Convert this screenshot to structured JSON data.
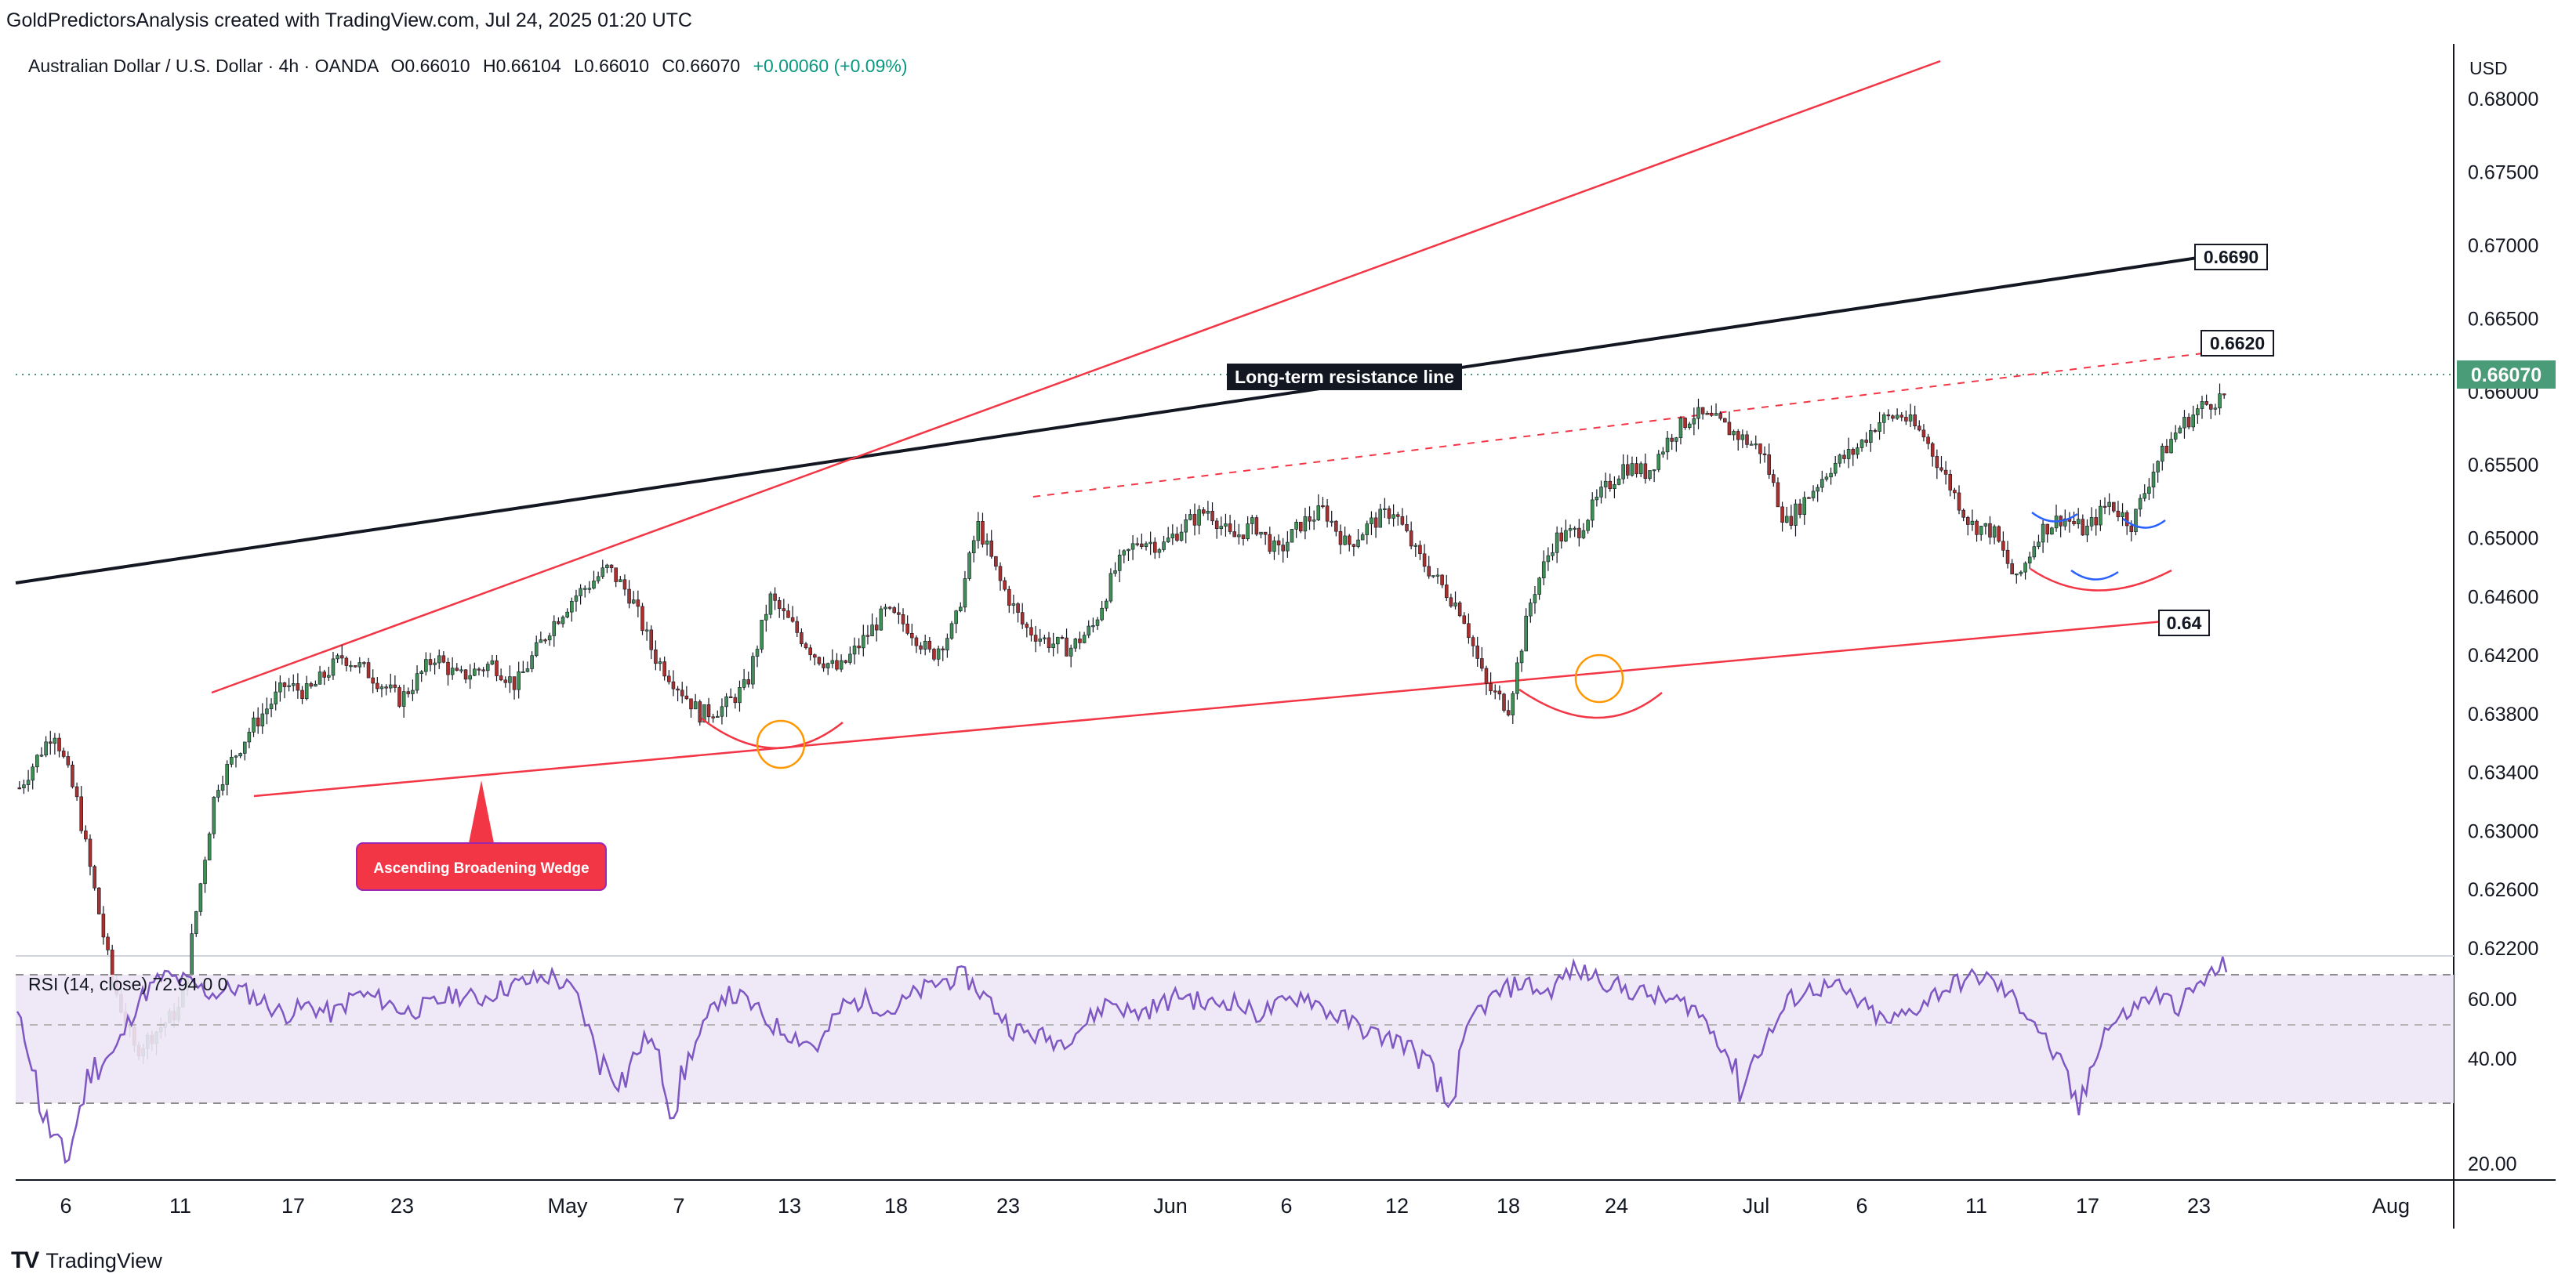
{
  "header": {
    "credit": "GoldPredictorsAnalysis created with TradingView.com, Jul 24, 2025 01:20 UTC"
  },
  "instrument": {
    "name": "Australian Dollar / U.S. Dollar",
    "timeframe": "4h",
    "broker": "OANDA",
    "open": "O0.66010",
    "high": "H0.66104",
    "low": "L0.66010",
    "close": "C0.66070",
    "change": "+0.00060 (+0.09%)"
  },
  "currency": "USD",
  "last_price_label": "0.66070",
  "annotations": {
    "resistance_label": "Long-term resistance line",
    "wedge_label": "Ascending Broadening Wedge",
    "black_line_price": "0.6690",
    "dashed_line_price": "0.6620",
    "lower_line_price": "0.64"
  },
  "rsi": {
    "title": "RSI (14, close) 72.94 0 0",
    "ticks": [
      "60.00",
      "40.00",
      "20.00"
    ]
  },
  "footer": {
    "brand": "TradingView"
  },
  "colors": {
    "up": "#26a69a",
    "down": "#ef5350",
    "candle_up": "#3f8f56",
    "candle_down": "#a8302e",
    "rsi_line": "#7e57c2",
    "accent": "#ff0000",
    "price_badge": "#4a9b77"
  },
  "chart_data": {
    "type": "candlestick",
    "y_axis_ticks": [
      "0.68000",
      "0.67500",
      "0.67000",
      "0.66500",
      "0.66000",
      "0.65500",
      "0.65000",
      "0.64600",
      "0.64200",
      "0.63800",
      "0.63400",
      "0.63000",
      "0.62600",
      "0.62200"
    ],
    "x_axis_ticks": [
      "6",
      "11",
      "17",
      "23",
      "May",
      "7",
      "13",
      "18",
      "23",
      "Jun",
      "6",
      "12",
      "18",
      "24",
      "Jul",
      "6",
      "11",
      "17",
      "23",
      "Aug"
    ],
    "close_path": [
      [
        0,
        0.633
      ],
      [
        3,
        0.637
      ],
      [
        5,
        0.632
      ],
      [
        8,
        0.62
      ],
      [
        10,
        0.615
      ],
      [
        14,
        0.618
      ],
      [
        17,
        0.633
      ],
      [
        20,
        0.637
      ],
      [
        23,
        0.64
      ],
      [
        25,
        0.6395
      ],
      [
        28,
        0.642
      ],
      [
        30,
        0.641
      ],
      [
        33,
        0.639
      ],
      [
        36,
        0.642
      ],
      [
        38,
        0.6405
      ],
      [
        41,
        0.6415
      ],
      [
        43,
        0.64
      ],
      [
        46,
        0.644
      ],
      [
        48,
        0.646
      ],
      [
        51,
        0.648
      ],
      [
        53,
        0.646
      ],
      [
        55,
        0.642
      ],
      [
        57,
        0.64
      ],
      [
        59,
        0.638
      ],
      [
        61,
        0.6385
      ],
      [
        63,
        0.64
      ],
      [
        65,
        0.646
      ],
      [
        67,
        0.644
      ],
      [
        69,
        0.642
      ],
      [
        71,
        0.641
      ],
      [
        73,
        0.643
      ],
      [
        75,
        0.645
      ],
      [
        77,
        0.644
      ],
      [
        79,
        0.642
      ],
      [
        81,
        0.644
      ],
      [
        83,
        0.651
      ],
      [
        85,
        0.647
      ],
      [
        87,
        0.644
      ],
      [
        89,
        0.643
      ],
      [
        91,
        0.6425
      ],
      [
        93,
        0.644
      ],
      [
        95,
        0.648
      ],
      [
        97,
        0.65
      ],
      [
        99,
        0.6495
      ],
      [
        101,
        0.651
      ],
      [
        103,
        0.652
      ],
      [
        105,
        0.65
      ],
      [
        107,
        0.651
      ],
      [
        109,
        0.649
      ],
      [
        111,
        0.651
      ],
      [
        113,
        0.652
      ],
      [
        115,
        0.6495
      ],
      [
        117,
        0.651
      ],
      [
        119,
        0.652
      ],
      [
        121,
        0.649
      ],
      [
        123,
        0.647
      ],
      [
        125,
        0.645
      ],
      [
        127,
        0.64
      ],
      [
        129,
        0.6385
      ],
      [
        131,
        0.646
      ],
      [
        133,
        0.65
      ],
      [
        135,
        0.6505
      ],
      [
        137,
        0.653
      ],
      [
        139,
        0.655
      ],
      [
        141,
        0.6545
      ],
      [
        143,
        0.657
      ],
      [
        145,
        0.6585
      ],
      [
        147,
        0.658
      ],
      [
        149,
        0.657
      ],
      [
        151,
        0.656
      ],
      [
        153,
        0.651
      ],
      [
        155,
        0.653
      ],
      [
        157,
        0.655
      ],
      [
        159,
        0.656
      ],
      [
        161,
        0.658
      ],
      [
        163,
        0.6585
      ],
      [
        165,
        0.657
      ],
      [
        167,
        0.654
      ],
      [
        169,
        0.651
      ],
      [
        171,
        0.6505
      ],
      [
        173,
        0.647
      ],
      [
        175,
        0.6505
      ],
      [
        177,
        0.6515
      ],
      [
        179,
        0.6505
      ],
      [
        181,
        0.6525
      ],
      [
        183,
        0.651
      ],
      [
        185,
        0.655
      ],
      [
        187,
        0.6575
      ],
      [
        189,
        0.659
      ],
      [
        191,
        0.6598
      ]
    ],
    "rsi_values": [
      55,
      30,
      20,
      38,
      42,
      60,
      68,
      66,
      62,
      64,
      60,
      55,
      58,
      55,
      62,
      60,
      56,
      58,
      62,
      60,
      64,
      66,
      68,
      62,
      40,
      36,
      48,
      30,
      46,
      62,
      60,
      52,
      48,
      44,
      58,
      60,
      56,
      62,
      66,
      68,
      60,
      50,
      48,
      46,
      52,
      60,
      55,
      58,
      62,
      58,
      60,
      55,
      58,
      62,
      56,
      52,
      48,
      46,
      40,
      30,
      55,
      62,
      66,
      62,
      70,
      68,
      64,
      62,
      60,
      58,
      48,
      34,
      46,
      60,
      64,
      64,
      58,
      52,
      56,
      62,
      66,
      68,
      62,
      54,
      40,
      30,
      50,
      56,
      62,
      58,
      66,
      72
    ]
  }
}
